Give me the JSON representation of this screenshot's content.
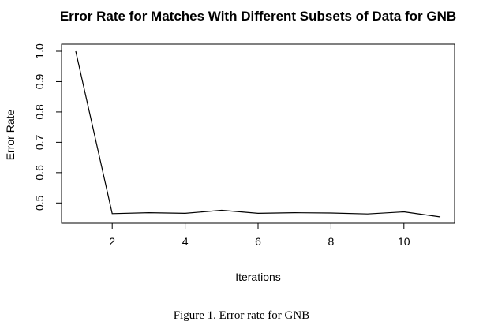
{
  "chart_data": {
    "type": "line",
    "title": "Error Rate for Matches With Different Subsets of Data for GNB",
    "xlabel": "Iterations",
    "ylabel": "Error Rate",
    "x": [
      1,
      2,
      3,
      4,
      5,
      6,
      7,
      8,
      9,
      10,
      11
    ],
    "series": [
      {
        "values": [
          1.0,
          0.465,
          0.468,
          0.466,
          0.476,
          0.466,
          0.468,
          0.467,
          0.464,
          0.471,
          0.454
        ]
      }
    ],
    "xticks": [
      2,
      4,
      6,
      8,
      10
    ],
    "yticks": [
      0.5,
      0.6,
      0.7,
      0.8,
      0.9,
      1.0
    ],
    "ytick_labels": [
      "0.5",
      "0.6",
      "0.7",
      "0.8",
      "0.9",
      "1.0"
    ],
    "xlim": [
      1,
      11
    ],
    "ylim": [
      0.454,
      1.0
    ],
    "grid": false,
    "line_color": "#000000"
  },
  "caption": "Figure 1. Error rate for GNB"
}
